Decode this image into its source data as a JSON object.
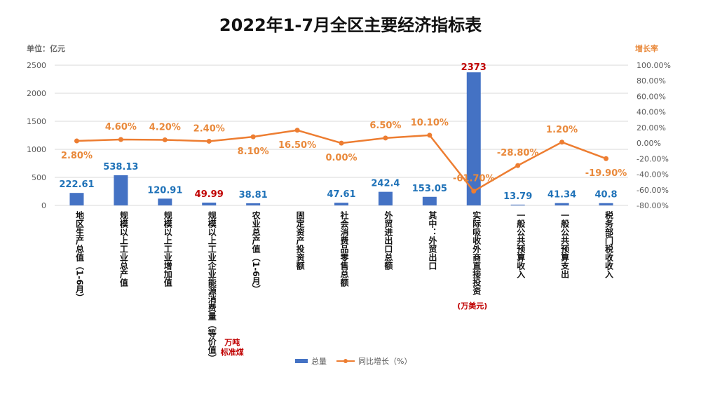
{
  "title": "2022年1-7月全区主要经济指标表",
  "unit_left": "单位：亿元",
  "unit_right": "增长率",
  "legend": {
    "bar": "总量",
    "line": "同比增长（%）"
  },
  "colors": {
    "bar": "#4472c4",
    "line": "#ed7d31",
    "bar_label": "#1f72b8",
    "bar_label_alt": "#c00000",
    "line_label": "#e9893b"
  },
  "chart_data": {
    "type": "bar",
    "categories": [
      "地区生产总值（1-6月）",
      "规模以上工业总产值",
      "规模以上工业增加值",
      "规模以上工业企业能源消费量（等价值）",
      "农业总产值（1-6月）",
      "固定资产投资额",
      "社会消费品零售总额",
      "外贸进出口总额",
      "其中：外贸出口",
      "实际吸收外商直接投资",
      "一般公共预算收入",
      "一般公共预算支出",
      "税务部门税收收入"
    ],
    "category_notes": [
      {
        "index": 3,
        "text": [
          "万吨",
          "标准煤"
        ]
      },
      {
        "index": 9,
        "text": [
          "(万美元)"
        ]
      }
    ],
    "series": [
      {
        "name": "总量",
        "type": "bar",
        "axis": "left",
        "values": [
          222.61,
          538.13,
          120.91,
          49.99,
          38.81,
          null,
          47.61,
          242.4,
          153.05,
          2373,
          13.79,
          41.34,
          40.8
        ],
        "labels": [
          "222.61",
          "538.13",
          "120.91",
          "49.99",
          "38.81",
          "",
          "47.61",
          "242.4",
          "153.05",
          "2373",
          "13.79",
          "41.34",
          "40.8"
        ]
      },
      {
        "name": "同比增长（%）",
        "type": "line",
        "axis": "right",
        "values": [
          2.8,
          4.6,
          4.2,
          2.4,
          8.1,
          16.5,
          0.0,
          6.5,
          10.1,
          -61.7,
          -28.8,
          1.2,
          -19.9
        ],
        "labels": [
          "2.80%",
          "4.60%",
          "4.20%",
          "2.40%",
          "8.10%",
          "16.50%",
          "0.00%",
          "6.50%",
          "10.10%",
          "-61.70%",
          "-28.80%",
          "1.20%",
          "-19.90%"
        ]
      }
    ],
    "y_left": {
      "min": 0,
      "max": 2500,
      "ticks": [
        "0",
        "500",
        "1000",
        "1500",
        "2000",
        "2500"
      ]
    },
    "y_right": {
      "min": -80,
      "max": 100,
      "ticks": [
        "-80.00%",
        "-60.00%",
        "-40.00%",
        "-20.00%",
        "0.00%",
        "20.00%",
        "40.00%",
        "60.00%",
        "80.00%",
        "100.00%"
      ]
    },
    "grid": true,
    "legend_position": "bottom"
  }
}
